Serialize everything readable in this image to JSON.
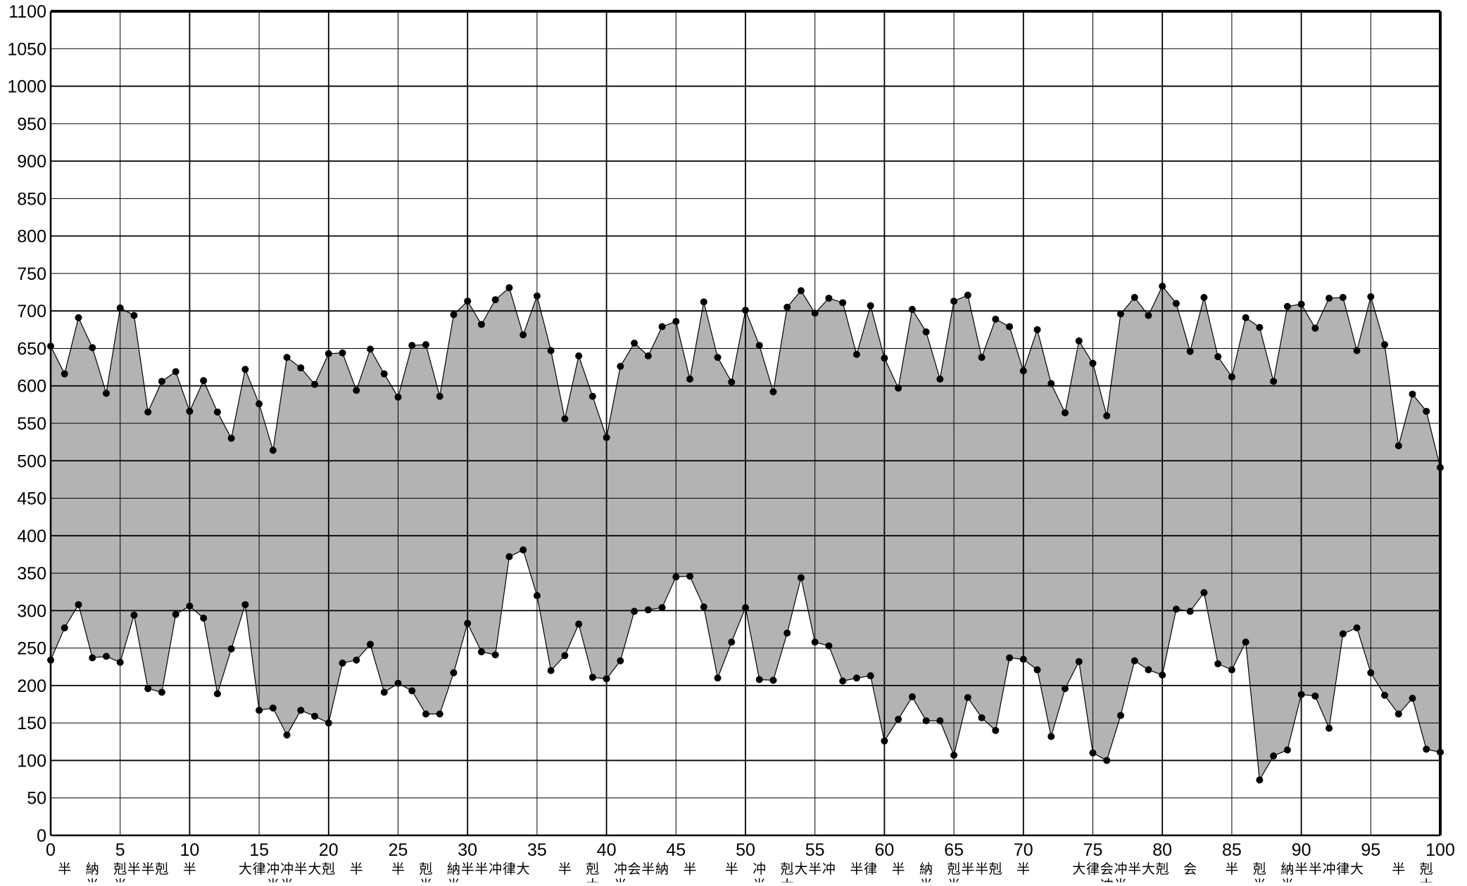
{
  "colors": {
    "band_fill": "#b3b3b3",
    "line": "#000000",
    "marker": "#000000",
    "grid": "#000000",
    "background": "#ffffff"
  },
  "chart_data": {
    "type": "area",
    "title": "",
    "xlabel": "",
    "ylabel": "",
    "xlim": [
      0,
      100
    ],
    "ylim": [
      0,
      1100
    ],
    "grid": true,
    "x_ticks": [
      0,
      5,
      10,
      15,
      20,
      25,
      30,
      35,
      40,
      45,
      50,
      55,
      60,
      65,
      70,
      75,
      80,
      85,
      90,
      95,
      100
    ],
    "y_ticks": [
      0,
      50,
      100,
      150,
      200,
      250,
      300,
      350,
      400,
      450,
      500,
      550,
      600,
      650,
      700,
      750,
      800,
      850,
      900,
      950,
      1000,
      1050,
      1100
    ],
    "x": [
      0,
      1,
      2,
      3,
      4,
      5,
      6,
      7,
      8,
      9,
      10,
      11,
      12,
      13,
      14,
      15,
      16,
      17,
      18,
      19,
      20,
      21,
      22,
      23,
      24,
      25,
      26,
      27,
      28,
      29,
      30,
      31,
      32,
      33,
      34,
      35,
      36,
      37,
      38,
      39,
      40,
      41,
      42,
      43,
      44,
      45,
      46,
      47,
      48,
      49,
      50,
      51,
      52,
      53,
      54,
      55,
      56,
      57,
      58,
      59,
      60,
      61,
      62,
      63,
      64,
      65,
      66,
      67,
      68,
      69,
      70,
      71,
      72,
      73,
      74,
      75,
      76,
      77,
      78,
      79,
      80,
      81,
      82,
      83,
      84,
      85,
      86,
      87,
      88,
      89,
      90,
      91,
      92,
      93,
      94,
      95,
      96,
      97,
      98,
      99,
      100
    ],
    "series": [
      {
        "values": [
          653,
          616,
          691,
          651,
          590,
          704,
          694,
          565,
          606,
          619,
          566,
          607,
          565,
          530,
          622,
          576,
          514,
          638,
          624,
          602,
          643,
          644,
          594,
          649,
          616,
          585,
          654,
          655,
          586,
          695,
          713,
          682,
          715,
          731,
          668,
          720,
          647,
          556,
          640,
          586,
          531,
          626,
          657,
          640,
          679,
          686,
          609,
          712,
          638,
          605,
          701,
          654,
          592,
          705,
          727,
          697,
          717,
          711,
          642,
          707,
          637,
          597,
          702,
          672,
          609,
          713,
          721,
          638,
          689,
          679,
          620,
          675,
          603,
          564,
          660,
          630,
          560,
          696,
          718,
          694,
          733,
          710,
          646,
          718,
          639,
          612,
          691,
          678,
          606,
          706,
          709,
          677,
          717,
          718,
          647,
          719,
          655,
          520,
          589,
          566,
          491
        ]
      },
      {
        "values": [
          234,
          277,
          308,
          237,
          239,
          231,
          294,
          196,
          191,
          295,
          306,
          290,
          189,
          249,
          308,
          167,
          170,
          134,
          167,
          159,
          150,
          230,
          234,
          255,
          191,
          203,
          193,
          162,
          162,
          217,
          283,
          245,
          241,
          372,
          381,
          320,
          220,
          240,
          282,
          211,
          209,
          233,
          299,
          301,
          304,
          345,
          346,
          305,
          210,
          258,
          304,
          208,
          207,
          270,
          344,
          258,
          253,
          206,
          210,
          213,
          126,
          155,
          185,
          153,
          153,
          107,
          184,
          157,
          140,
          237,
          235,
          221,
          132,
          196,
          232,
          110,
          100,
          160,
          233,
          221,
          214,
          302,
          299,
          324,
          229,
          221,
          258,
          74,
          106,
          114,
          188,
          186,
          143,
          269,
          277,
          217,
          187,
          162,
          183,
          115,
          111
        ]
      }
    ],
    "annotations": [
      {
        "x": 1,
        "rows": [
          "半"
        ]
      },
      {
        "x": 3,
        "rows": [
          "納",
          "半"
        ]
      },
      {
        "x": 5,
        "rows": [
          "剋",
          "半"
        ]
      },
      {
        "x": 6,
        "rows": [
          "半"
        ]
      },
      {
        "x": 7,
        "rows": [
          "半"
        ]
      },
      {
        "x": 8,
        "rows": [
          "剋"
        ]
      },
      {
        "x": 10,
        "rows": [
          "半"
        ]
      },
      {
        "x": 14,
        "rows": [
          "大"
        ]
      },
      {
        "x": 15,
        "rows": [
          "律"
        ]
      },
      {
        "x": 16,
        "rows": [
          "冲",
          "半"
        ]
      },
      {
        "x": 17,
        "rows": [
          "冲",
          "半"
        ]
      },
      {
        "x": 18,
        "rows": [
          "半"
        ]
      },
      {
        "x": 19,
        "rows": [
          "大"
        ]
      },
      {
        "x": 20,
        "rows": [
          "剋"
        ]
      },
      {
        "x": 22,
        "rows": [
          "半"
        ]
      },
      {
        "x": 25,
        "rows": [
          "半"
        ]
      },
      {
        "x": 27,
        "rows": [
          "剋",
          "半"
        ]
      },
      {
        "x": 29,
        "rows": [
          "納",
          "半"
        ]
      },
      {
        "x": 30,
        "rows": [
          "半"
        ]
      },
      {
        "x": 31,
        "rows": [
          "半"
        ]
      },
      {
        "x": 32,
        "rows": [
          "冲"
        ]
      },
      {
        "x": 33,
        "rows": [
          "律"
        ]
      },
      {
        "x": 34,
        "rows": [
          "大"
        ]
      },
      {
        "x": 37,
        "rows": [
          "半"
        ]
      },
      {
        "x": 39,
        "rows": [
          "剋",
          "大"
        ]
      },
      {
        "x": 41,
        "rows": [
          "冲",
          "半"
        ]
      },
      {
        "x": 42,
        "rows": [
          "会"
        ]
      },
      {
        "x": 43,
        "rows": [
          "半"
        ]
      },
      {
        "x": 44,
        "rows": [
          "納"
        ]
      },
      {
        "x": 46,
        "rows": [
          "半"
        ]
      },
      {
        "x": 49,
        "rows": [
          "半"
        ]
      },
      {
        "x": 51,
        "rows": [
          "冲",
          "半"
        ]
      },
      {
        "x": 53,
        "rows": [
          "剋",
          "大"
        ]
      },
      {
        "x": 54,
        "rows": [
          "大"
        ]
      },
      {
        "x": 55,
        "rows": [
          "半"
        ]
      },
      {
        "x": 56,
        "rows": [
          "冲"
        ]
      },
      {
        "x": 58,
        "rows": [
          "半"
        ]
      },
      {
        "x": 59,
        "rows": [
          "律"
        ]
      },
      {
        "x": 61,
        "rows": [
          "半"
        ]
      },
      {
        "x": 63,
        "rows": [
          "納",
          "半"
        ]
      },
      {
        "x": 65,
        "rows": [
          "剋",
          "半"
        ]
      },
      {
        "x": 66,
        "rows": [
          "半"
        ]
      },
      {
        "x": 67,
        "rows": [
          "半"
        ]
      },
      {
        "x": 68,
        "rows": [
          "剋"
        ]
      },
      {
        "x": 70,
        "rows": [
          "半"
        ]
      },
      {
        "x": 74,
        "rows": [
          "大"
        ]
      },
      {
        "x": 75,
        "rows": [
          "律"
        ]
      },
      {
        "x": 76,
        "rows": [
          "会",
          "冲"
        ]
      },
      {
        "x": 77,
        "rows": [
          "冲",
          "半"
        ]
      },
      {
        "x": 78,
        "rows": [
          "半"
        ]
      },
      {
        "x": 79,
        "rows": [
          "大"
        ]
      },
      {
        "x": 80,
        "rows": [
          "剋"
        ]
      },
      {
        "x": 82,
        "rows": [
          "会"
        ]
      },
      {
        "x": 85,
        "rows": [
          "半"
        ]
      },
      {
        "x": 87,
        "rows": [
          "剋",
          "半"
        ]
      },
      {
        "x": 89,
        "rows": [
          "納",
          "半"
        ]
      },
      {
        "x": 90,
        "rows": [
          "半"
        ]
      },
      {
        "x": 91,
        "rows": [
          "半"
        ]
      },
      {
        "x": 92,
        "rows": [
          "冲"
        ]
      },
      {
        "x": 93,
        "rows": [
          "律"
        ]
      },
      {
        "x": 94,
        "rows": [
          "大"
        ]
      },
      {
        "x": 97,
        "rows": [
          "半"
        ]
      },
      {
        "x": 99,
        "rows": [
          "剋",
          "大"
        ]
      }
    ]
  }
}
